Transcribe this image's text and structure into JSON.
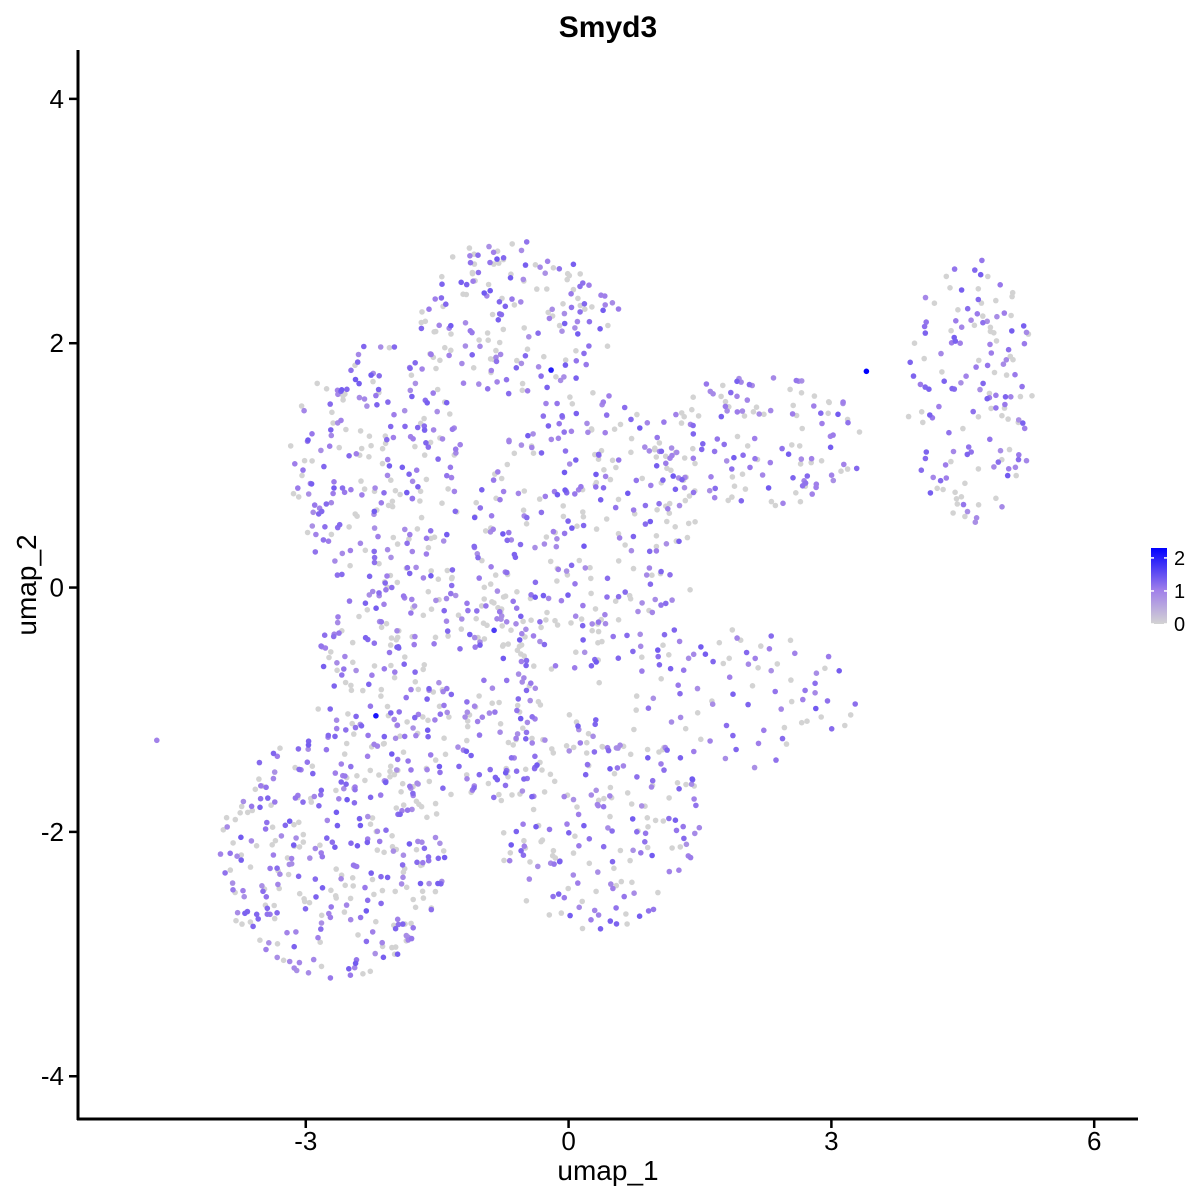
{
  "chart_data": {
    "type": "scatter",
    "title": "Smyd3",
    "xlabel": "umap_1",
    "ylabel": "umap_2",
    "xlim": [
      -5.6,
      6.5
    ],
    "ylim": [
      -4.35,
      4.4
    ],
    "x_ticks": [
      -3,
      0,
      3,
      6
    ],
    "y_ticks": [
      -4,
      -2,
      0,
      2,
      4
    ],
    "x_tick_labels": [
      "-3",
      "0",
      "3",
      "6"
    ],
    "y_tick_labels": [
      "-4",
      "-2",
      "0",
      "2",
      "4"
    ],
    "grid": false,
    "legend": {
      "type": "colorbar",
      "placement": "right",
      "range": [
        0,
        2.3
      ],
      "ticks": [
        0,
        1,
        2
      ],
      "tick_labels": [
        "0",
        "1",
        "2"
      ],
      "low_color": "#d3d3d3",
      "high_color": "#0000ff"
    },
    "point_count_estimate": 1900,
    "notable_points": [
      {
        "x": 3.4,
        "y": 1.77,
        "value": 2.3
      },
      {
        "x": -0.2,
        "y": 1.78,
        "value": 2.0
      },
      {
        "x": -2.2,
        "y": -1.05,
        "value": 2.1
      },
      {
        "x": -0.85,
        "y": -0.35,
        "value": 1.7
      },
      {
        "x": -4.7,
        "y": -1.25,
        "value": 1.0
      }
    ],
    "series": [
      {
        "regions": [
          {
            "cx": -2.7,
            "cy": -2.2,
            "rx": 1.3,
            "ry": 1.0,
            "weight": 0.18
          },
          {
            "cx": -1.6,
            "cy": -0.8,
            "rx": 1.3,
            "ry": 1.0,
            "weight": 0.16
          },
          {
            "cx": -2.2,
            "cy": 1.0,
            "rx": 1.0,
            "ry": 1.0,
            "weight": 0.12
          },
          {
            "cx": -0.6,
            "cy": 2.2,
            "rx": 1.2,
            "ry": 0.65,
            "weight": 0.1
          },
          {
            "cx": 0.2,
            "cy": 0.4,
            "rx": 1.3,
            "ry": 1.2,
            "weight": 0.14
          },
          {
            "cx": 0.3,
            "cy": -1.9,
            "rx": 1.2,
            "ry": 0.9,
            "weight": 0.11
          },
          {
            "cx": 2.2,
            "cy": 1.2,
            "rx": 1.2,
            "ry": 0.55,
            "weight": 0.07
          },
          {
            "cx": 4.6,
            "cy": 1.6,
            "rx": 0.75,
            "ry": 1.1,
            "weight": 0.08
          },
          {
            "cx": 2.0,
            "cy": -0.9,
            "rx": 1.3,
            "ry": 0.6,
            "weight": 0.04
          }
        ],
        "expressed_fraction": 0.6,
        "expressed_value_range": [
          0.8,
          1.4
        ]
      }
    ]
  }
}
